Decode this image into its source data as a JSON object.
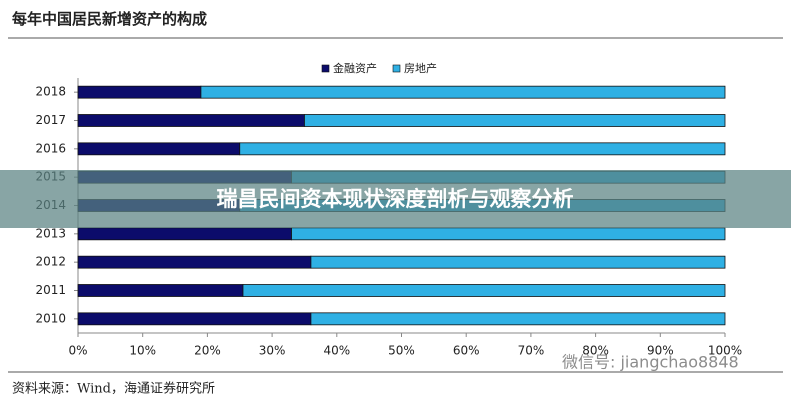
{
  "chart_data": {
    "type": "stacked-barh",
    "title": "每年中国居民新增资产的构成",
    "categories": [
      "2018",
      "2017",
      "2016",
      "2015",
      "2014",
      "2013",
      "2012",
      "2011",
      "2010"
    ],
    "series": [
      {
        "name": "金融资产",
        "color": "#0c0c6b",
        "values": [
          19,
          35,
          25,
          33,
          25,
          33,
          36,
          25.5,
          36
        ]
      },
      {
        "name": "房地产",
        "color": "#2fb0e4",
        "values": [
          81,
          65,
          75,
          67,
          75,
          67,
          64,
          74.5,
          64
        ]
      }
    ],
    "xlim": [
      0,
      100
    ],
    "xticks": [
      {
        "value": 0,
        "label": "0%"
      },
      {
        "value": 10,
        "label": "10%"
      },
      {
        "value": 20,
        "label": "20%"
      },
      {
        "value": 30,
        "label": "30%"
      },
      {
        "value": 40,
        "label": "40%"
      },
      {
        "value": 50,
        "label": "50%"
      },
      {
        "value": 60,
        "label": "60%"
      },
      {
        "value": 70,
        "label": "70%"
      },
      {
        "value": 80,
        "label": "80%"
      },
      {
        "value": 90,
        "label": "90%"
      },
      {
        "value": 100,
        "label": "100%"
      }
    ],
    "legend": "top",
    "source": "资料来源：Wind，海通证券研究所"
  },
  "banner": "瑞昌民间资本现状深度剖析与观察分析",
  "watermark": "微信号: jiangchao8848"
}
